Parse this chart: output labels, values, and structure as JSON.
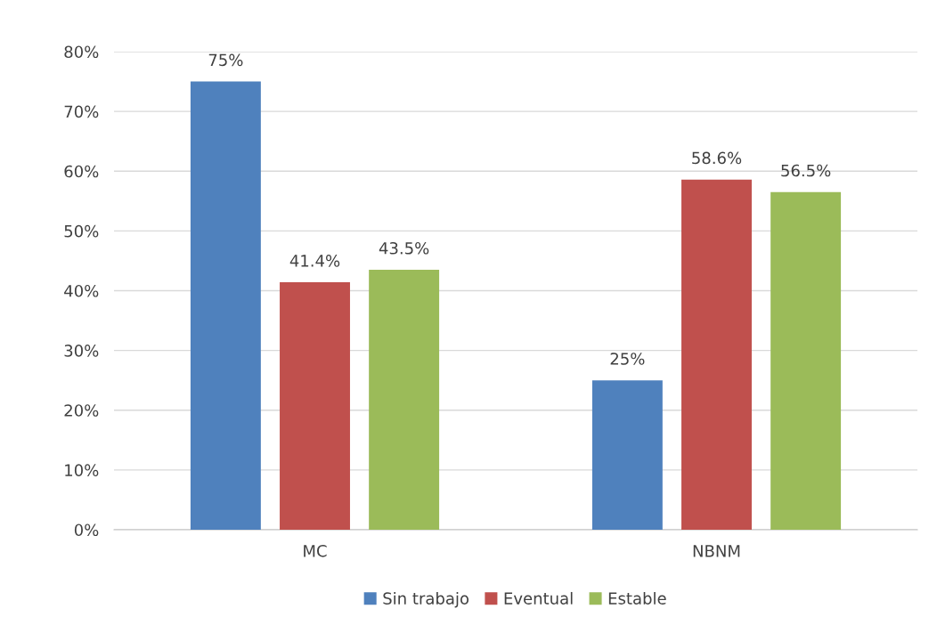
{
  "chart_data": {
    "type": "bar",
    "categories": [
      "MC",
      "NBNM"
    ],
    "series": [
      {
        "name": "Sin trabajo",
        "color": "#4f81bd",
        "values": [
          75,
          25
        ],
        "value_labels": [
          "75%",
          "25%"
        ]
      },
      {
        "name": "Eventual",
        "color": "#c0504d",
        "values": [
          41.4,
          58.6
        ],
        "value_labels": [
          "41.4%",
          "58.6%"
        ]
      },
      {
        "name": "Estable",
        "color": "#9bbb59",
        "values": [
          43.5,
          56.5
        ],
        "value_labels": [
          "43.5%",
          "56.5%"
        ]
      }
    ],
    "ylim": [
      0,
      80
    ],
    "yticks": [
      {
        "value": 0,
        "label": "0%"
      },
      {
        "value": 10,
        "label": "10%"
      },
      {
        "value": 20,
        "label": "20%"
      },
      {
        "value": 30,
        "label": "30%"
      },
      {
        "value": 40,
        "label": "40%"
      },
      {
        "value": 50,
        "label": "50%"
      },
      {
        "value": 60,
        "label": "60%"
      },
      {
        "value": 70,
        "label": "70%"
      },
      {
        "value": 80,
        "label": "80%"
      }
    ],
    "grid": "y",
    "legend": "bottom"
  }
}
